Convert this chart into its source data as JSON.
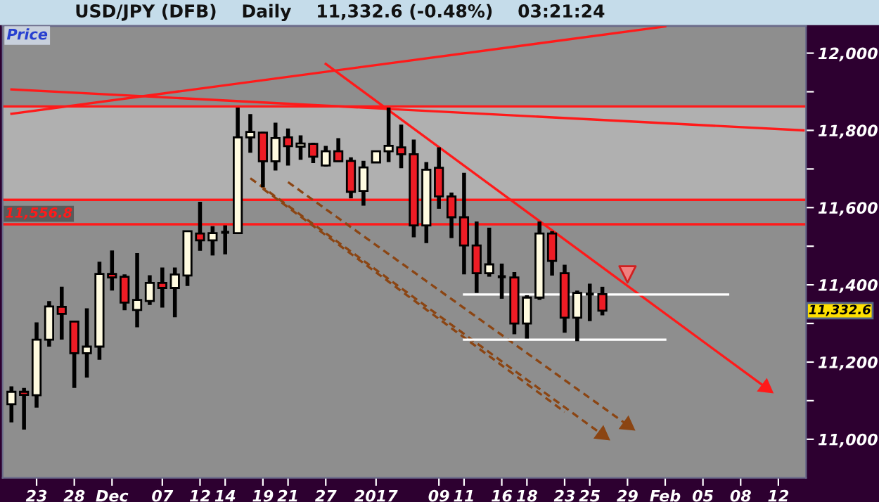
{
  "chart_data": {
    "type": "candlestick",
    "title": "USD/JPY (DFB)    Daily    11,332.6 (-0.48%)    03:21:24",
    "categories": [
      null,
      null,
      "23",
      null,
      null,
      "28",
      null,
      null,
      "Dec",
      null,
      null,
      null,
      "07",
      null,
      null,
      "12",
      null,
      "14",
      null,
      null,
      "19",
      null,
      "21",
      null,
      null,
      "27",
      null,
      null,
      null,
      "2017",
      null,
      null,
      null,
      null,
      "09",
      null,
      "11",
      null,
      null,
      "16",
      null,
      "18",
      null,
      null,
      "23",
      null,
      "25",
      null,
      null,
      "29",
      null,
      null,
      "Feb",
      null,
      null,
      "05",
      null,
      null,
      "08",
      null,
      null,
      "12",
      null,
      null
    ],
    "ohlc": [
      [
        11091,
        11137,
        11044,
        11123
      ],
      [
        11123,
        11133,
        11025,
        11115
      ],
      [
        11114,
        11303,
        11082,
        11258
      ],
      [
        11258,
        11358,
        11240,
        11344
      ],
      [
        11343,
        11395,
        11258,
        11325
      ],
      [
        11305,
        11305,
        11133,
        11223
      ],
      [
        11223,
        11339,
        11160,
        11240
      ],
      [
        11240,
        11460,
        11206,
        11428
      ],
      [
        11428,
        11489,
        11385,
        11419
      ],
      [
        11421,
        11427,
        11334,
        11354
      ],
      [
        11335,
        11482,
        11290,
        11361
      ],
      [
        11358,
        11425,
        11348,
        11405
      ],
      [
        11405,
        11445,
        11341,
        11392
      ],
      [
        11392,
        11445,
        11316,
        11427
      ],
      [
        11424,
        11540,
        11397,
        11539
      ],
      [
        11533,
        11615,
        11488,
        11515
      ],
      [
        11515,
        11552,
        11476,
        11534
      ],
      [
        11536,
        11554,
        11479,
        11536
      ],
      [
        11534,
        11859,
        11533,
        11782
      ],
      [
        11782,
        11842,
        11742,
        11796
      ],
      [
        11794,
        11796,
        11653,
        11720
      ],
      [
        11720,
        11820,
        11696,
        11780
      ],
      [
        11782,
        11805,
        11709,
        11759
      ],
      [
        11758,
        11787,
        11724,
        11766
      ],
      [
        11765,
        11768,
        11715,
        11732
      ],
      [
        11709,
        11760,
        11706,
        11746
      ],
      [
        11746,
        11780,
        11719,
        11720
      ],
      [
        11721,
        11730,
        11624,
        11641
      ],
      [
        11643,
        11721,
        11605,
        11704
      ],
      [
        11717,
        11748,
        11715,
        11746
      ],
      [
        11746,
        11859,
        11718,
        11760
      ],
      [
        11756,
        11815,
        11702,
        11738
      ],
      [
        11738,
        11776,
        11523,
        11554
      ],
      [
        11554,
        11718,
        11508,
        11698
      ],
      [
        11703,
        11756,
        11597,
        11629
      ],
      [
        11629,
        11639,
        11521,
        11575
      ],
      [
        11575,
        11690,
        11427,
        11502
      ],
      [
        11502,
        11564,
        11379,
        11430
      ],
      [
        11430,
        11548,
        11421,
        11453
      ],
      [
        11421,
        11455,
        11364,
        11421
      ],
      [
        11419,
        11433,
        11272,
        11300
      ],
      [
        11300,
        11373,
        11261,
        11367
      ],
      [
        11367,
        11564,
        11361,
        11533
      ],
      [
        11533,
        11539,
        11424,
        11462
      ],
      [
        11430,
        11452,
        11276,
        11315
      ],
      [
        11315,
        11385,
        11254,
        11379
      ],
      [
        11376,
        11403,
        11306,
        11376
      ],
      [
        11376,
        11395,
        11321,
        11333
      ],
      null,
      null,
      null,
      null,
      null,
      null,
      null,
      null,
      null,
      null,
      null,
      null,
      null,
      null,
      null,
      null
    ],
    "colors": [
      "#fffbe0",
      "#ee1c25",
      "#fffbe0",
      "#fffbe0",
      "#ee1c25",
      "#ee1c25",
      "#fffbe0",
      "#fffbe0",
      "#ee1c25",
      "#ee1c25",
      "#fffbe0",
      "#fffbe0",
      "#ee1c25",
      "#fffbe0",
      "#fffbe0",
      "#ee1c25",
      "#fffbe0",
      "#000000",
      "#fffbe0",
      "#fffbe0",
      "#ee1c25",
      "#fffbe0",
      "#ee1c25",
      "#fffbe0",
      "#ee1c25",
      "#fffbe0",
      "#ee1c25",
      "#ee1c25",
      "#fffbe0",
      "#fffbe0",
      "#fffbe0",
      "#ee1c25",
      "#ee1c25",
      "#fffbe0",
      "#ee1c25",
      "#ee1c25",
      "#ee1c25",
      "#ee1c25",
      "#fffbe0",
      "#000000",
      "#ee1c25",
      "#fffbe0",
      "#fffbe0",
      "#ee1c25",
      "#ee1c25",
      "#fffbe0",
      "#000000",
      "#ee1c25",
      null,
      null,
      null,
      null,
      null,
      null,
      null,
      null,
      null,
      null,
      null,
      null,
      null,
      null,
      null,
      null
    ],
    "series": [
      {
        "type": "line",
        "color": "#ff1a1a",
        "values": [
          11843,
          null,
          null,
          null,
          null,
          null,
          null,
          null,
          null,
          null,
          null,
          null,
          null,
          null,
          null,
          null,
          null,
          null,
          null,
          null,
          null,
          null,
          null,
          null,
          null,
          null,
          null,
          null,
          null,
          null,
          null,
          null,
          null,
          null,
          null,
          null,
          null,
          null,
          null,
          null,
          null,
          null,
          null,
          null,
          null,
          null,
          null,
          null,
          null,
          null,
          null,
          null,
          12069,
          null,
          null,
          null,
          null,
          null,
          null,
          null,
          null,
          null,
          null,
          null
        ]
      },
      {
        "type": "line",
        "color": "#ff1a1a",
        "values": [
          11906,
          null,
          null,
          null,
          null,
          null,
          null,
          null,
          null,
          null,
          null,
          null,
          null,
          null,
          null,
          null,
          null,
          null,
          null,
          null,
          null,
          null,
          null,
          null,
          null,
          null,
          null,
          null,
          null,
          null,
          null,
          null,
          null,
          null,
          null,
          null,
          null,
          null,
          null,
          null,
          null,
          null,
          null,
          null,
          null,
          null,
          null,
          null,
          null,
          null,
          null,
          null,
          null,
          null,
          null,
          null,
          null,
          null,
          null,
          null,
          null,
          null,
          null,
          11800
        ]
      },
      {
        "type": "line",
        "color": "#ff1a1a",
        "marker": "triangle",
        "values": [
          null,
          null,
          null,
          null,
          null,
          null,
          null,
          null,
          null,
          null,
          null,
          null,
          null,
          null,
          null,
          null,
          null,
          null,
          null,
          null,
          null,
          null,
          null,
          null,
          null,
          11972,
          null,
          null,
          null,
          null,
          null,
          null,
          null,
          null,
          null,
          null,
          null,
          null,
          null,
          null,
          null,
          null,
          null,
          null,
          null,
          null,
          null,
          null,
          null,
          null,
          null,
          null,
          null,
          null,
          null,
          null,
          null,
          null,
          null,
          null,
          11134,
          null,
          null,
          null
        ]
      },
      {
        "type": "line",
        "color": "#8b4513",
        "line_style": "dashed",
        "marker": "triangle",
        "values": [
          null,
          null,
          null,
          null,
          null,
          null,
          null,
          null,
          null,
          null,
          null,
          null,
          null,
          null,
          null,
          null,
          null,
          null,
          null,
          11676,
          null,
          null,
          null,
          null,
          null,
          null,
          null,
          null,
          null,
          null,
          null,
          null,
          null,
          null,
          null,
          null,
          null,
          null,
          null,
          null,
          null,
          null,
          null,
          null,
          null,
          null,
          null,
          11012,
          null,
          null,
          null,
          null,
          null,
          null,
          null,
          null,
          null,
          null,
          null,
          null,
          null,
          null,
          null,
          null
        ]
      },
      {
        "type": "line",
        "color": "#8b4513",
        "line_style": "dashed",
        "marker": "triangle",
        "values": [
          null,
          null,
          null,
          null,
          null,
          null,
          null,
          null,
          null,
          null,
          null,
          null,
          null,
          null,
          null,
          null,
          null,
          null,
          null,
          null,
          null,
          null,
          11666,
          null,
          null,
          null,
          null,
          null,
          null,
          null,
          null,
          null,
          null,
          null,
          null,
          null,
          null,
          null,
          null,
          null,
          null,
          null,
          null,
          null,
          null,
          null,
          null,
          null,
          null,
          11037,
          null,
          null,
          null,
          null,
          null,
          null,
          null,
          null,
          null,
          null,
          null,
          null,
          null,
          null
        ]
      },
      {
        "type": "line",
        "color": "#8b4513",
        "line_style": "dashed",
        "values": [
          null,
          null,
          null,
          null,
          null,
          null,
          null,
          null,
          null,
          null,
          null,
          null,
          null,
          null,
          null,
          null,
          null,
          null,
          null,
          null,
          11649,
          null,
          null,
          null,
          null,
          null,
          null,
          null,
          null,
          null,
          null,
          null,
          null,
          null,
          null,
          null,
          null,
          null,
          null,
          null,
          null,
          null,
          null,
          null,
          11071,
          null,
          null,
          null,
          null,
          null,
          null,
          null,
          null,
          null,
          null,
          null,
          null,
          null,
          null,
          null,
          null,
          null,
          null,
          null
        ]
      },
      {
        "type": "line",
        "color": "#ffffff",
        "values": [
          null,
          null,
          null,
          null,
          null,
          null,
          null,
          null,
          null,
          null,
          null,
          null,
          null,
          null,
          null,
          null,
          null,
          null,
          null,
          null,
          null,
          null,
          null,
          null,
          null,
          null,
          null,
          null,
          null,
          null,
          null,
          null,
          null,
          null,
          null,
          null,
          11375,
          null,
          null,
          null,
          null,
          null,
          null,
          null,
          null,
          null,
          null,
          null,
          null,
          null,
          null,
          null,
          null,
          null,
          null,
          null,
          null,
          11375,
          null,
          null,
          null,
          null,
          null,
          null
        ]
      },
      {
        "type": "line",
        "color": "#ffffff",
        "values": [
          null,
          null,
          null,
          null,
          null,
          null,
          null,
          null,
          null,
          null,
          null,
          null,
          null,
          null,
          null,
          null,
          null,
          null,
          null,
          null,
          null,
          null,
          null,
          null,
          null,
          null,
          null,
          null,
          null,
          null,
          null,
          null,
          null,
          null,
          null,
          null,
          11258,
          null,
          null,
          null,
          null,
          null,
          null,
          null,
          null,
          null,
          null,
          null,
          null,
          null,
          null,
          null,
          11258,
          null,
          null,
          null,
          null,
          null,
          null,
          null,
          null,
          null,
          null,
          null
        ]
      },
      {
        "type": "scatter",
        "color": "#f08080",
        "marker": "triangle",
        "values": [
          null,
          null,
          null,
          null,
          null,
          null,
          null,
          null,
          null,
          null,
          null,
          null,
          null,
          null,
          null,
          null,
          null,
          null,
          null,
          null,
          null,
          null,
          null,
          null,
          null,
          null,
          null,
          null,
          null,
          null,
          null,
          null,
          null,
          null,
          null,
          null,
          null,
          null,
          null,
          null,
          null,
          null,
          null,
          null,
          null,
          null,
          null,
          null,
          null,
          11427,
          null,
          null,
          null,
          null,
          null,
          null,
          null,
          null,
          null,
          null,
          null,
          null,
          null,
          null
        ]
      }
    ],
    "ylim": [
      10900,
      12070
    ],
    "yticks": [
      {
        "value": 11000,
        "label": "11,000"
      },
      {
        "value": 11100,
        "label": null
      },
      {
        "value": 11200,
        "label": "11,200"
      },
      {
        "value": 11300,
        "label": null
      },
      {
        "value": 11400,
        "label": "11,400"
      },
      {
        "value": 11500,
        "label": null
      },
      {
        "value": 11600,
        "label": "11,600"
      },
      {
        "value": 11700,
        "label": null
      },
      {
        "value": 11800,
        "label": "11,800"
      },
      {
        "value": 11900,
        "label": null
      },
      {
        "value": 12000,
        "label": "12,000"
      }
    ],
    "bands": [
      {
        "axis": "y",
        "from": 11620,
        "to": 11862,
        "color": "#b0b0b0"
      }
    ],
    "ref_lines": [
      {
        "axis": "y",
        "value": 11556.8,
        "label": "11,556.8",
        "color": "#ff1a1a"
      },
      {
        "axis": "y",
        "value": 11620,
        "color": "#ff1a1a"
      },
      {
        "axis": "y",
        "value": 11862,
        "color": "#ff1a1a"
      }
    ],
    "annotations": [
      "Price",
      "11,332.6"
    ]
  }
}
